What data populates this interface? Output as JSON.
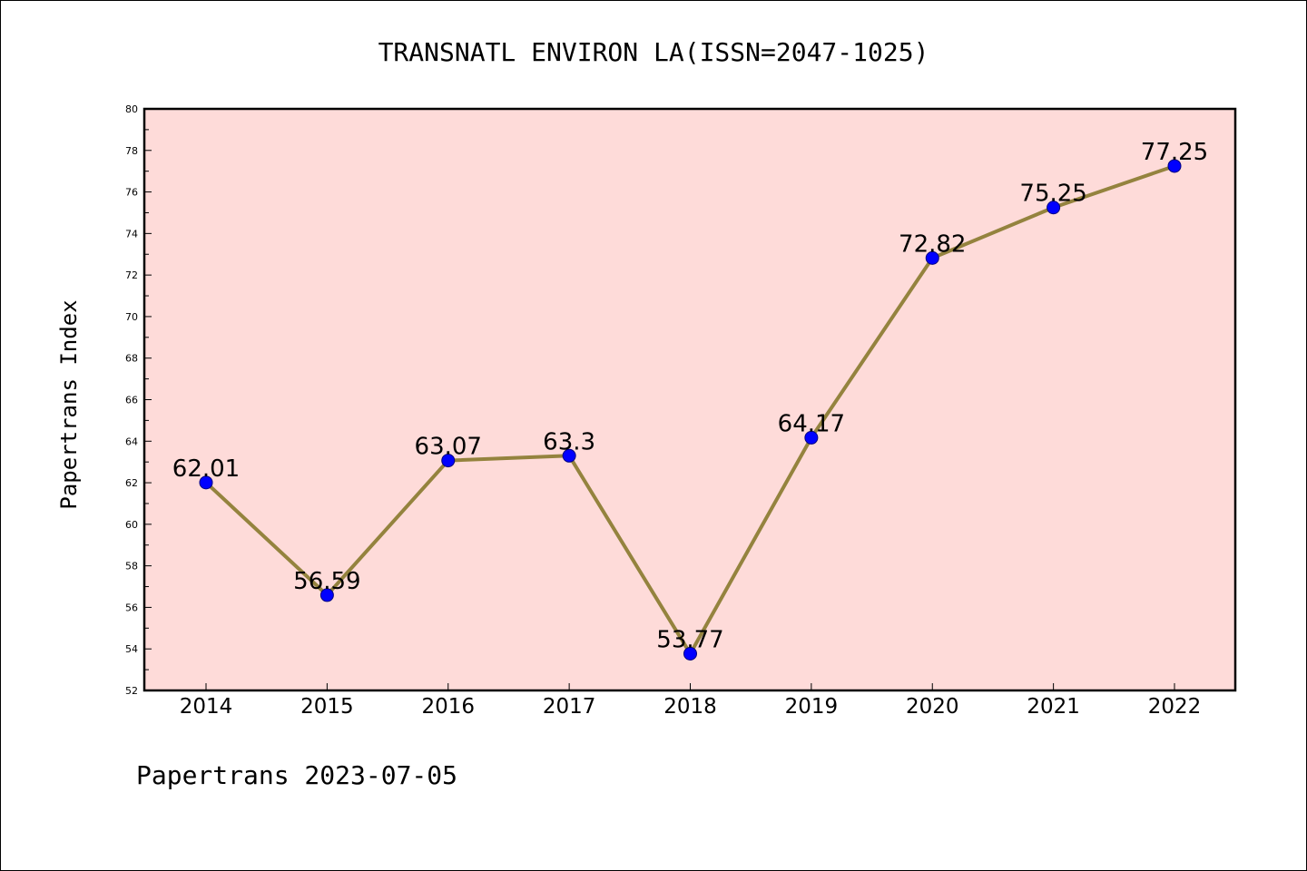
{
  "chart_data": {
    "type": "line",
    "title": "TRANSNATL ENVIRON LA(ISSN=2047-1025)",
    "xlabel": "",
    "ylabel": "Papertrans Index",
    "footer": "Papertrans 2023-07-05",
    "categories": [
      "2014",
      "2015",
      "2016",
      "2017",
      "2018",
      "2019",
      "2020",
      "2021",
      "2022"
    ],
    "series": [
      {
        "values": [
          62.01,
          56.59,
          63.07,
          63.3,
          53.77,
          64.17,
          72.82,
          75.25,
          77.25
        ],
        "labels": [
          "62.01",
          "56.59",
          "63.07",
          "63.3",
          "53.77",
          "64.17",
          "72.82",
          "75.25",
          "77.25"
        ]
      }
    ],
    "ylim": [
      52,
      80
    ],
    "ytick_values": [
      52,
      54,
      56,
      58,
      60,
      62,
      64,
      66,
      68,
      70,
      72,
      74,
      76,
      78,
      80
    ],
    "ytick_labels": [
      "52",
      "54",
      "56",
      "58",
      "60",
      "62",
      "64",
      "66",
      "68",
      "70",
      "72",
      "74",
      "76",
      "78",
      "80"
    ],
    "grid": false,
    "legend": "none",
    "colors": {
      "plot_background": "#fedbd9",
      "line": "#94833e",
      "marker_fill": "#0000ff",
      "marker_edge": "#000080",
      "axis": "#000000"
    }
  }
}
